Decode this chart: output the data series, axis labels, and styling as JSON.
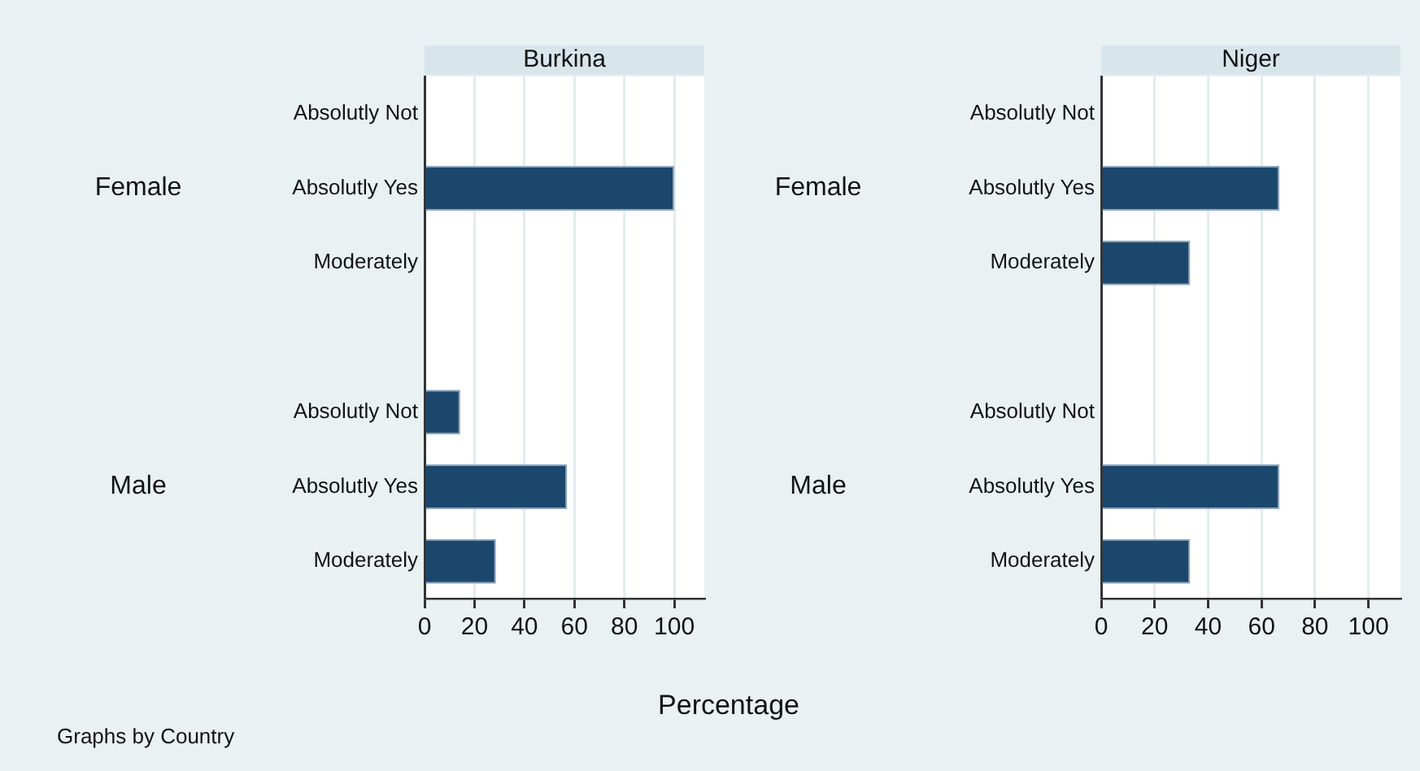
{
  "chart_data": [
    {
      "type": "bar",
      "orientation": "horizontal",
      "title": "Burkina",
      "xlabel": "Percentage",
      "categories": [
        "Absolutly Not",
        "Absolutly Yes",
        "Moderately",
        null,
        "Absolutly Not",
        "Absolutly Yes",
        "Moderately"
      ],
      "values": [
        0,
        100,
        0,
        null,
        14.3,
        57.1,
        28.6
      ],
      "color": "#1c476d",
      "xlim": [
        0,
        112
      ],
      "xticks": [
        0,
        20,
        40,
        60,
        80,
        100
      ],
      "grid": "x",
      "legend": false,
      "annotations": [
        "Female",
        "Male",
        "Graphs by Country"
      ]
    },
    {
      "type": "bar",
      "orientation": "horizontal",
      "title": "Niger",
      "categories": [
        "Absolutly Not",
        "Absolutly Yes",
        "Moderately",
        null,
        "Absolutly Not",
        "Absolutly Yes",
        "Moderately"
      ],
      "values": [
        0,
        66.7,
        33.3,
        null,
        0,
        66.7,
        33.3
      ],
      "color": "#1c476d",
      "xlim": [
        0,
        112
      ],
      "xticks": [
        0,
        20,
        40,
        60,
        80,
        100
      ],
      "grid": "x",
      "legend": false,
      "annotations": [
        "Female",
        "Male"
      ]
    }
  ]
}
